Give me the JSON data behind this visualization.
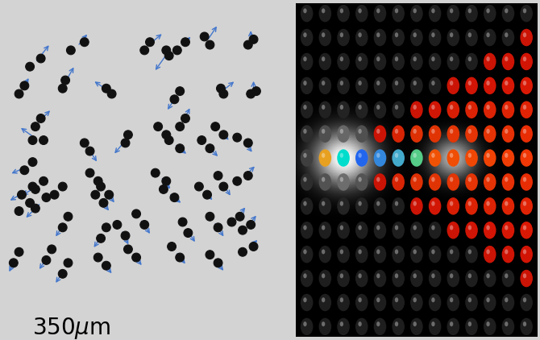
{
  "fig_width": 6.7,
  "fig_height": 4.22,
  "bg_color": "#d3d3d3",
  "left_panel": {
    "bg_color": "#c8c8c8",
    "particle_color": "#111111",
    "arrow_color": "#4477cc",
    "pairs": [
      [
        0.08,
        0.82,
        0.12,
        0.85,
        0.055,
        0.07
      ],
      [
        0.23,
        0.88,
        0.28,
        0.91,
        0.04,
        0.05
      ],
      [
        0.5,
        0.88,
        0.52,
        0.91,
        0.06,
        0.05
      ],
      [
        0.58,
        0.88,
        0.59,
        0.86,
        -0.05,
        -0.07
      ],
      [
        0.62,
        0.88,
        0.65,
        0.91,
        0.04,
        0.04
      ],
      [
        0.74,
        0.9,
        0.72,
        0.93,
        0.04,
        0.06
      ],
      [
        0.88,
        0.9,
        0.9,
        0.92,
        0.0,
        0.05
      ],
      [
        0.04,
        0.72,
        0.06,
        0.75,
        0.03,
        0.05
      ],
      [
        0.2,
        0.74,
        0.21,
        0.77,
        0.04,
        0.07
      ],
      [
        0.38,
        0.72,
        0.36,
        0.74,
        -0.06,
        0.04
      ],
      [
        0.63,
        0.73,
        0.61,
        0.7,
        -0.04,
        -0.06
      ],
      [
        0.79,
        0.72,
        0.78,
        0.74,
        0.05,
        0.04
      ],
      [
        0.91,
        0.73,
        0.89,
        0.72,
        0.0,
        0.05
      ],
      [
        0.1,
        0.6,
        0.12,
        0.63,
        0.05,
        0.05
      ],
      [
        0.13,
        0.55,
        0.09,
        0.55,
        -0.07,
        0.05
      ],
      [
        0.09,
        0.47,
        0.06,
        0.44,
        -0.07,
        -0.03
      ],
      [
        0.28,
        0.54,
        0.3,
        0.51,
        0.04,
        -0.06
      ],
      [
        0.44,
        0.57,
        0.43,
        0.54,
        -0.05,
        -0.06
      ],
      [
        0.55,
        0.6,
        0.58,
        0.57,
        0.04,
        -0.04
      ],
      [
        0.59,
        0.55,
        0.63,
        0.52,
        0.05,
        -0.04
      ],
      [
        0.63,
        0.6,
        0.65,
        0.63,
        0.03,
        0.06
      ],
      [
        0.71,
        0.55,
        0.74,
        0.52,
        0.05,
        -0.05
      ],
      [
        0.76,
        0.6,
        0.79,
        0.57,
        0.04,
        -0.04
      ],
      [
        0.84,
        0.56,
        0.88,
        0.54,
        0.04,
        -0.05
      ],
      [
        0.09,
        0.38,
        0.05,
        0.35,
        -0.07,
        -0.04
      ],
      [
        0.13,
        0.4,
        0.1,
        0.37,
        -0.07,
        -0.04
      ],
      [
        0.08,
        0.32,
        0.04,
        0.29,
        -0.07,
        -0.04
      ],
      [
        0.14,
        0.34,
        0.1,
        0.3,
        -0.06,
        -0.06
      ],
      [
        0.2,
        0.38,
        0.17,
        0.35,
        -0.06,
        -0.04
      ],
      [
        0.3,
        0.43,
        0.33,
        0.4,
        0.04,
        -0.05
      ],
      [
        0.34,
        0.38,
        0.37,
        0.35,
        0.04,
        -0.05
      ],
      [
        0.32,
        0.35,
        0.35,
        0.32,
        0.04,
        -0.05
      ],
      [
        0.54,
        0.43,
        0.58,
        0.4,
        0.04,
        -0.05
      ],
      [
        0.57,
        0.37,
        0.61,
        0.34,
        0.05,
        -0.04
      ],
      [
        0.7,
        0.38,
        0.73,
        0.35,
        0.04,
        -0.04
      ],
      [
        0.77,
        0.42,
        0.79,
        0.38,
        0.04,
        -0.06
      ],
      [
        0.84,
        0.4,
        0.88,
        0.42,
        0.05,
        0.05
      ],
      [
        0.22,
        0.27,
        0.2,
        0.23,
        -0.04,
        -0.06
      ],
      [
        0.36,
        0.23,
        0.34,
        0.19,
        -0.04,
        -0.06
      ],
      [
        0.4,
        0.24,
        0.43,
        0.2,
        0.03,
        -0.06
      ],
      [
        0.47,
        0.28,
        0.5,
        0.24,
        0.04,
        -0.06
      ],
      [
        0.64,
        0.25,
        0.66,
        0.21,
        0.04,
        -0.06
      ],
      [
        0.74,
        0.27,
        0.77,
        0.23,
        0.04,
        -0.06
      ],
      [
        0.82,
        0.25,
        0.85,
        0.27,
        0.04,
        0.05
      ],
      [
        0.86,
        0.22,
        0.89,
        0.24,
        0.04,
        0.05
      ],
      [
        0.04,
        0.14,
        0.02,
        0.1,
        -0.03,
        -0.06
      ],
      [
        0.16,
        0.15,
        0.14,
        0.11,
        -0.04,
        -0.06
      ],
      [
        0.22,
        0.1,
        0.2,
        0.06,
        -0.04,
        -0.06
      ],
      [
        0.33,
        0.12,
        0.36,
        0.09,
        0.04,
        -0.05
      ],
      [
        0.44,
        0.15,
        0.47,
        0.12,
        0.04,
        -0.05
      ],
      [
        0.6,
        0.16,
        0.63,
        0.12,
        0.04,
        -0.05
      ],
      [
        0.74,
        0.13,
        0.77,
        0.1,
        0.04,
        -0.05
      ],
      [
        0.86,
        0.14,
        0.9,
        0.16,
        0.04,
        0.04
      ]
    ]
  },
  "scale_fontsize": 20,
  "right_panel": {
    "nrows": 14,
    "ncols": 13,
    "mid_row": 6,
    "mid_col": 2,
    "mach_tan": 0.55
  }
}
